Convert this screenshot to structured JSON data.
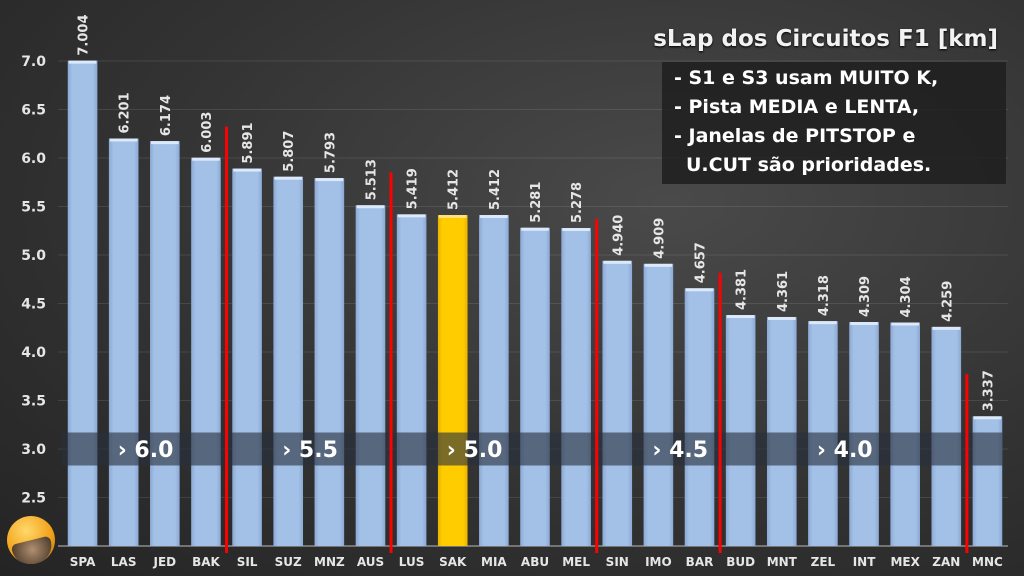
{
  "title": "sLap dos Circuitos F1 [km]",
  "notes": [
    "- S1 e S3 usam MUITO K,",
    "- Pista MEDIA e LENTA,",
    "- Janelas de PITSTOP e",
    "U.CUT são prioridades."
  ],
  "colors": {
    "bar": "#9dbbe3",
    "highlight_bar": "#ffc800",
    "separator": "#ff0000",
    "band": "rgba(40,48,62,0.62)"
  },
  "chart_data": {
    "type": "bar",
    "title": "sLap dos Circuitos F1 [km]",
    "xlabel": "",
    "ylabel": "",
    "ylim": [
      2.0,
      7.0
    ],
    "yticks": [
      "2.5",
      "3.0",
      "3.5",
      "4.0",
      "4.5",
      "5.0",
      "5.5",
      "6.0",
      "6.5",
      "7.0"
    ],
    "grid": true,
    "categories": [
      "SPA",
      "LAS",
      "JED",
      "BAK",
      "SIL",
      "SUZ",
      "MNZ",
      "AUS",
      "LUS",
      "SAK",
      "MIA",
      "ABU",
      "MEL",
      "SIN",
      "IMO",
      "BAR",
      "BUD",
      "MNT",
      "ZEL",
      "INT",
      "MEX",
      "ZAN",
      "MNC"
    ],
    "values": [
      7.004,
      6.201,
      6.174,
      6.003,
      5.891,
      5.807,
      5.793,
      5.513,
      5.419,
      5.412,
      5.412,
      5.281,
      5.278,
      4.94,
      4.909,
      4.657,
      4.381,
      4.361,
      4.318,
      4.309,
      4.304,
      4.259,
      3.337
    ],
    "value_labels": [
      "7.004",
      "6.201",
      "6.174",
      "6.003",
      "5.891",
      "5.807",
      "5.793",
      "5.513",
      "5.419",
      "5.412",
      "5.412",
      "5.281",
      "5.278",
      "4.940",
      "4.909",
      "4.657",
      "4.381",
      "4.361",
      "4.318",
      "4.309",
      "4.304",
      "4.259",
      "3.337"
    ],
    "highlighted": "SAK",
    "separators_after": [
      "BAK",
      "AUS",
      "MEL",
      "BAR",
      "ZAN"
    ],
    "band": {
      "range": [
        2.83,
        3.17
      ],
      "labels": [
        {
          "text": "› 6.0",
          "at": "LAS"
        },
        {
          "text": "› 5.5",
          "at": "SUZ"
        },
        {
          "text": "› 5.0",
          "at": "SAK"
        },
        {
          "text": "› 4.5",
          "at": "IMO"
        },
        {
          "text": "› 4.0",
          "at": "ZEL"
        }
      ]
    }
  }
}
